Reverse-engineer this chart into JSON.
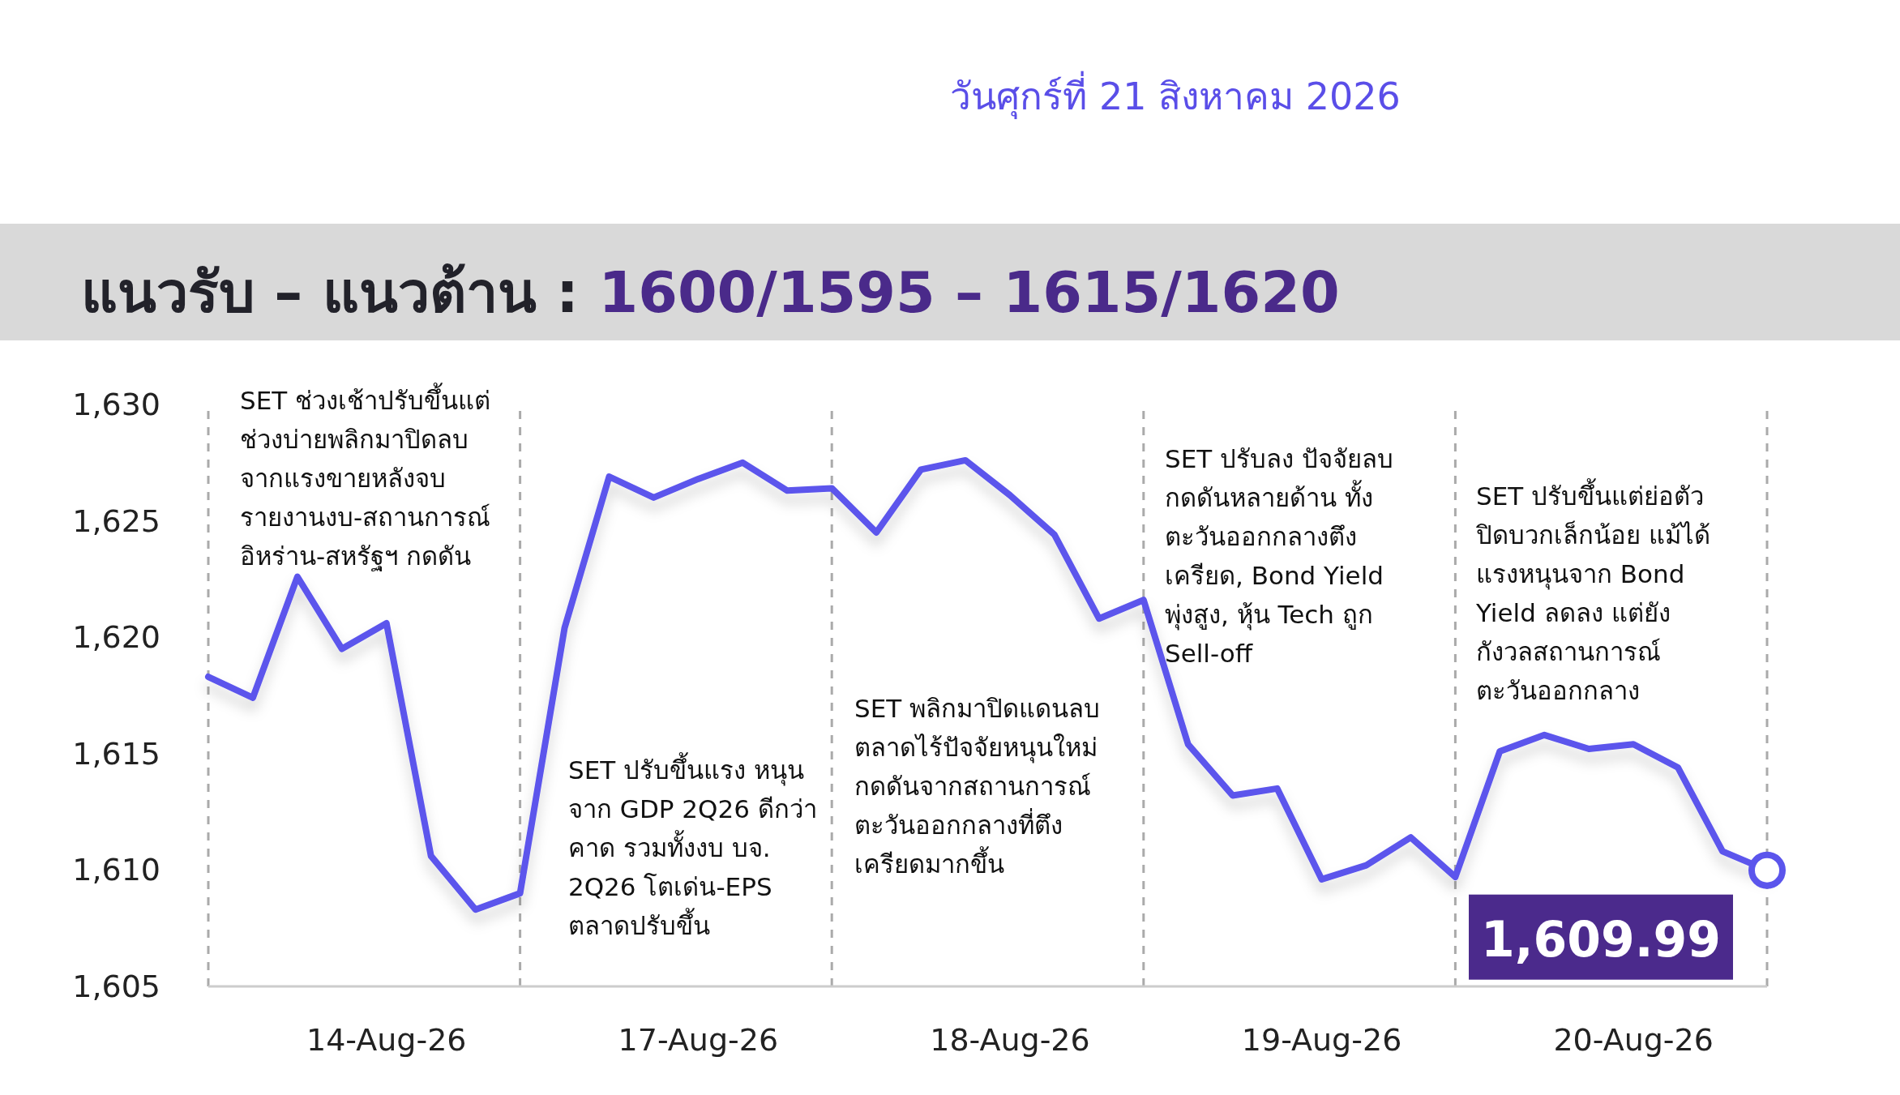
{
  "chart_data": {
    "type": "line",
    "title": "แนวรับ – แนวต้าน :",
    "subtitle": "1600/1595 – 1615/1620",
    "annotations": [
      "วันศุกร์ที่ 21 สิงหาคม 2026",
      "SET ช่วงเช้าปรับขึ้นแต่\nช่วงบ่ายพลิกมาปิดลบ\nจากแรงขายหลังจบ\nรายงานงบ-สถานการณ์\nอิหร่าน-สหรัฐฯ กดดัน",
      "SET ปรับขึ้นแรง หนุน\nจาก GDP 2Q26 ดีกว่า\nคาด รวมทั้งงบ บจ.\n2Q26 โตเด่น-EPS\nตลาดปรับขึ้น",
      "SET พลิกมาปิดแดนลบ\nตลาดไร้ปัจจัยหนุนใหม่\nกดดันจากสถานการณ์\nตะวันออกกลางที่ตึง\nเครียดมากขึ้น",
      "SET ปรับลง ปัจจัยลบ\nกดดันหลายด้าน ทั้ง\nตะวันออกกลางตึง\nเครียด, Bond Yield\nพุ่งสูง, หุ้น Tech ถูก\nSell-off",
      "SET ปรับขึ้นแต่ย่อตัว\nปิดบวกเล็กน้อย แม้ได้\nแรงหนุนจาก Bond\nYield ลดลง แต่ยัง\nกังวลสถานการณ์\nตะวันออกกลาง"
    ],
    "categories": [
      null,
      null,
      null,
      null,
      "14-Aug-26",
      null,
      null,
      null,
      null,
      null,
      null,
      "17-Aug-26",
      null,
      null,
      null,
      null,
      null,
      null,
      "18-Aug-26",
      null,
      null,
      null,
      null,
      null,
      null,
      "19-Aug-26",
      null,
      null,
      null,
      null,
      null,
      null,
      "20-Aug-26",
      null,
      null,
      null
    ],
    "series": [
      {
        "color": "#5b55ec",
        "values": [
          1618.3,
          1617.4,
          1622.6,
          1619.5,
          1620.6,
          1610.6,
          1608.3,
          1609.0,
          1620.4,
          1626.9,
          1626.0,
          1626.8,
          1627.5,
          1626.3,
          1626.4,
          1624.5,
          1627.2,
          1627.6,
          1626.1,
          1624.4,
          1620.8,
          1621.6,
          1615.4,
          1613.2,
          1613.5,
          1609.6,
          1610.2,
          1611.4,
          1609.7,
          1615.1,
          1615.8,
          1615.2,
          1615.4,
          1614.4,
          1610.8,
          1609.99
        ],
        "value_labels": [
          null,
          null,
          null,
          null,
          null,
          null,
          null,
          null,
          null,
          null,
          null,
          null,
          null,
          null,
          null,
          null,
          null,
          null,
          null,
          null,
          null,
          null,
          null,
          null,
          null,
          null,
          null,
          null,
          null,
          null,
          null,
          null,
          null,
          null,
          null,
          "1,609.99"
        ]
      }
    ],
    "ylim": [
      1605,
      1630
    ],
    "yticks": [
      {
        "value": 1605,
        "label": "1,605"
      },
      {
        "value": 1610,
        "label": "1,610"
      },
      {
        "value": 1615,
        "label": "1,615"
      },
      {
        "value": 1620,
        "label": "1,620"
      },
      {
        "value": 1625,
        "label": "1,625"
      },
      {
        "value": 1630,
        "label": "1,630"
      }
    ],
    "grid": "x"
  }
}
